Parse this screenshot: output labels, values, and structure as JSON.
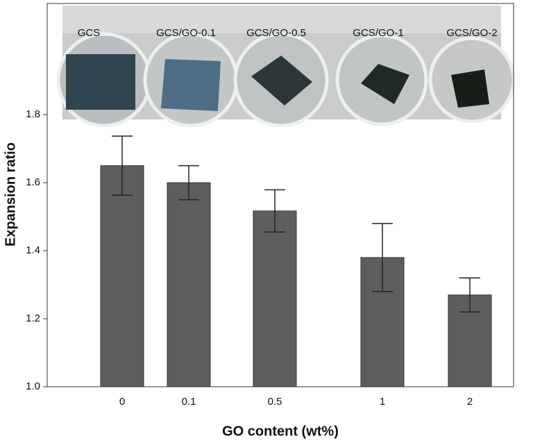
{
  "chart_data": {
    "type": "bar",
    "x_label": "GO content (wt%)",
    "y_label": "Expansion ratio",
    "categories": [
      "0",
      "0.1",
      "0.5",
      "1",
      "2"
    ],
    "values": [
      1.65,
      1.6,
      1.517,
      1.38,
      1.27
    ],
    "errors": [
      0.087,
      0.05,
      0.062,
      0.1,
      0.05
    ],
    "color": "#5e5e5e",
    "ylim": [
      1.0,
      2.127
    ],
    "yticks": [
      {
        "value": 1.0,
        "label": "1.0"
      },
      1.2,
      1.4,
      1.6,
      1.8
    ],
    "annotations": [
      "GCS",
      "GCS/GO-0.1",
      "GCS/GO-0.5",
      "GCS/GO-1",
      "GCS/GO-2"
    ]
  }
}
